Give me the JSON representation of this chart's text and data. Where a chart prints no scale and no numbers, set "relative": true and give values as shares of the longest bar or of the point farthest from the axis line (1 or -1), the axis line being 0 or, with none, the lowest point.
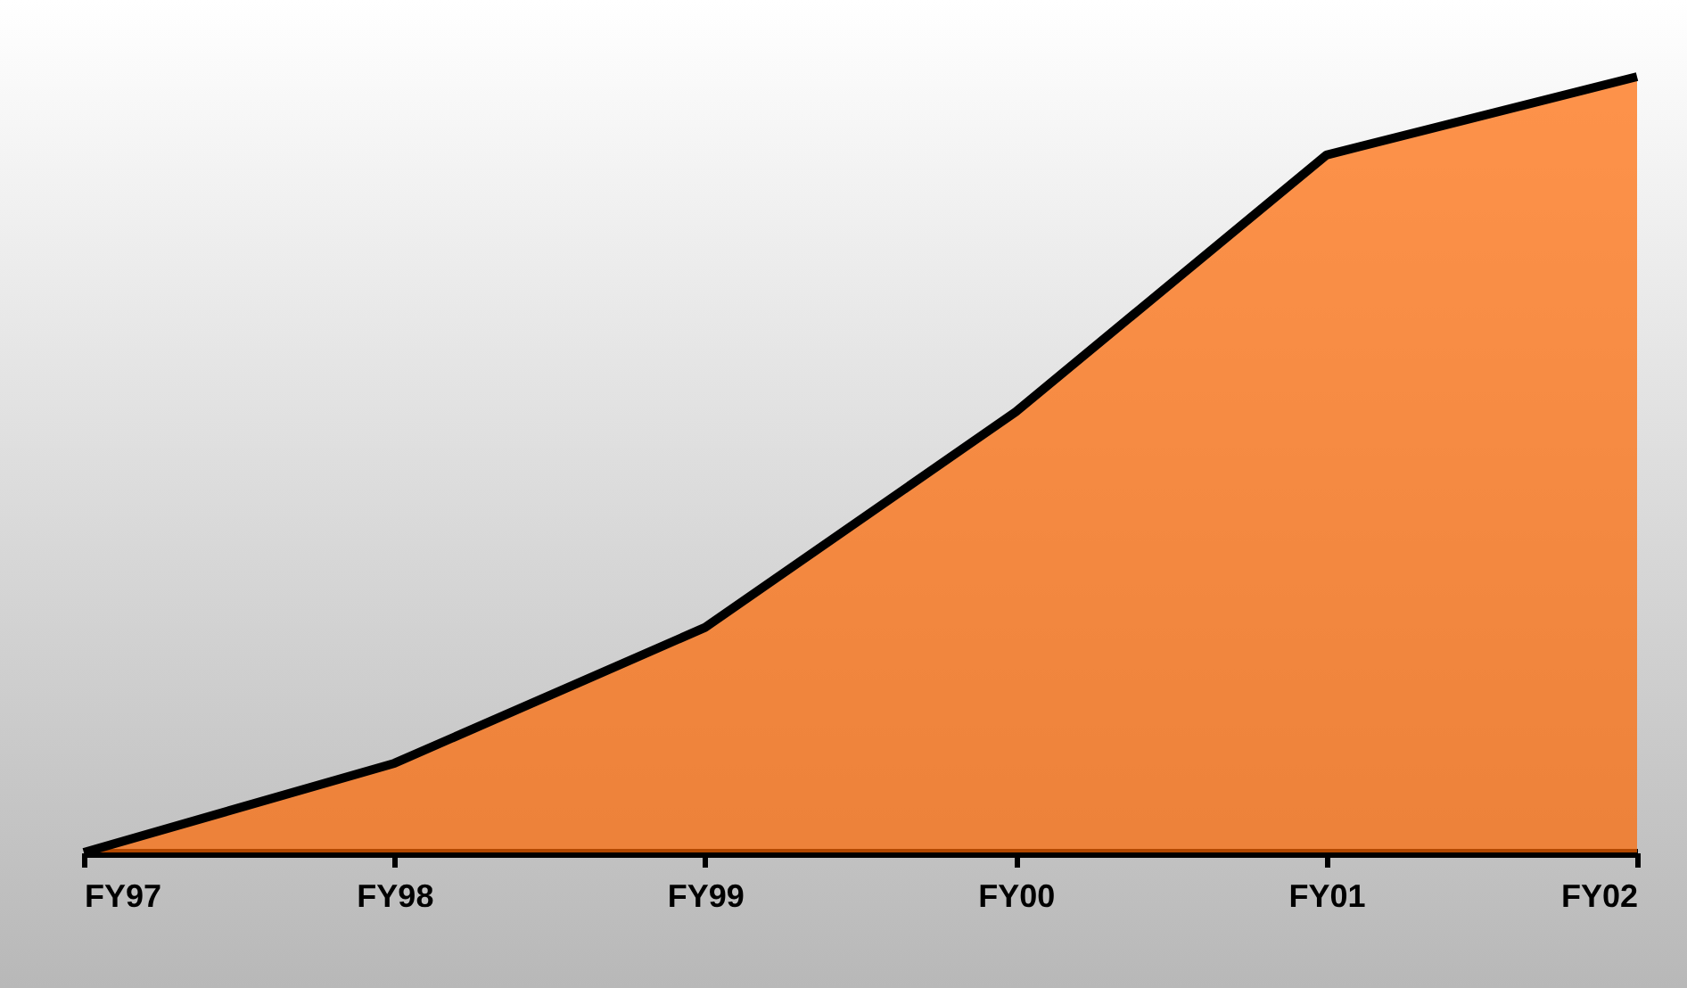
{
  "chart_data": {
    "type": "area",
    "relative": true,
    "categories": [
      "FY97",
      "FY98",
      "FY99",
      "FY00",
      "FY01",
      "FY02"
    ],
    "series": [
      {
        "color": "#ff6600",
        "values": [
          0,
          0.115,
          0.29,
          0.568,
          0.899,
          1
        ]
      }
    ]
  }
}
